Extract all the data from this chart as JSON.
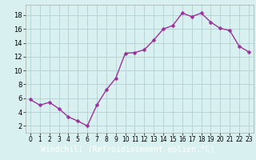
{
  "x": [
    0,
    1,
    2,
    3,
    4,
    5,
    6,
    7,
    8,
    9,
    10,
    11,
    12,
    13,
    14,
    15,
    16,
    17,
    18,
    19,
    20,
    21,
    22,
    23
  ],
  "y": [
    5.8,
    5.0,
    5.4,
    4.5,
    3.3,
    2.7,
    2.0,
    5.0,
    7.2,
    8.9,
    12.5,
    12.6,
    13.0,
    14.4,
    16.0,
    16.5,
    18.3,
    17.8,
    18.3,
    17.0,
    16.1,
    15.8,
    13.5,
    12.7
  ],
  "line_color": "#993399",
  "marker": "D",
  "markersize": 2.5,
  "bg_color": "#d9f0f0",
  "grid_color": "#b8d4d4",
  "xlabel": "Windchill (Refroidissement éolien,°C)",
  "xlabel_bg": "#7b3f9b",
  "xlabel_fg": "#ffffff",
  "ylabel_ticks": [
    2,
    4,
    6,
    8,
    10,
    12,
    14,
    16,
    18
  ],
  "xlim": [
    -0.5,
    23.5
  ],
  "ylim": [
    1,
    19.5
  ],
  "tick_fontsize": 6.0,
  "xlabel_fontsize": 7.0,
  "linewidth": 1.0
}
